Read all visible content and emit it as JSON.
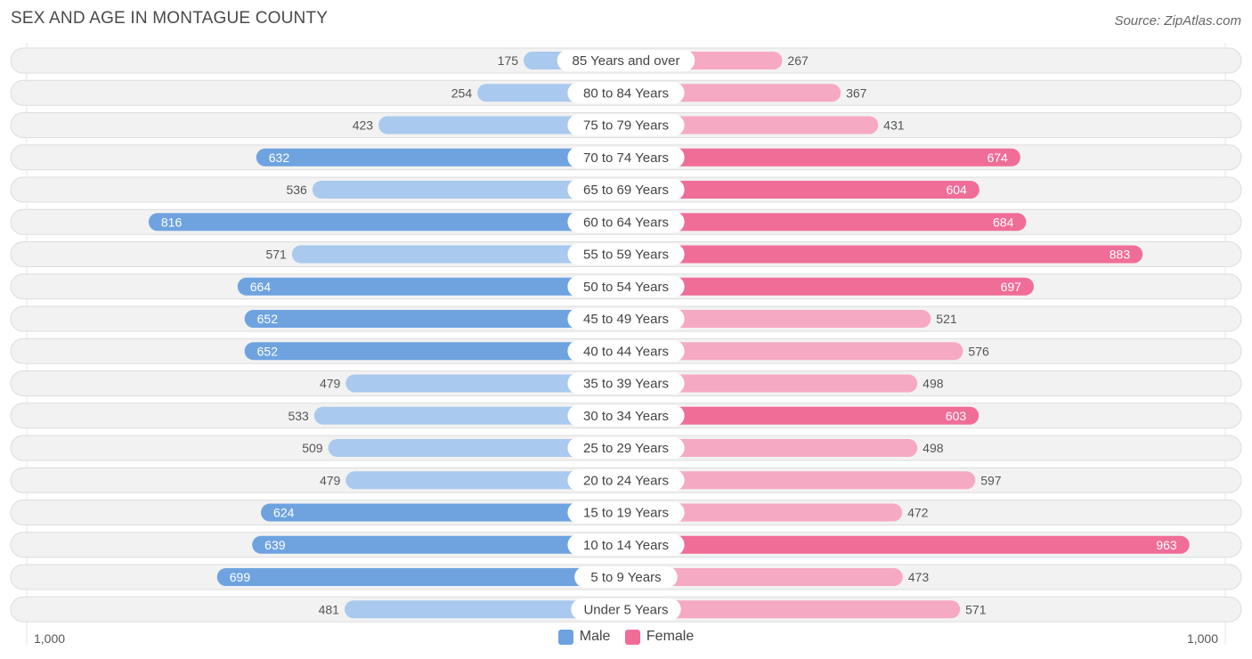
{
  "header": {
    "title": "SEX AND AGE IN MONTAGUE COUNTY",
    "source": "Source: ZipAtlas.com"
  },
  "colors": {
    "male_full": "#6ea3e0",
    "male_light": "#a9c9ee",
    "female_full": "#f06d98",
    "female_light": "#f6a9c3",
    "row_bg": "#f2f2f2",
    "row_border": "#dddddd"
  },
  "chart_data": {
    "type": "bar",
    "orientation": "horizontal-diverging",
    "title": "SEX AND AGE IN MONTAGUE COUNTY",
    "categories": [
      "85 Years and over",
      "80 to 84 Years",
      "75 to 79 Years",
      "70 to 74 Years",
      "65 to 69 Years",
      "60 to 64 Years",
      "55 to 59 Years",
      "50 to 54 Years",
      "45 to 49 Years",
      "40 to 44 Years",
      "35 to 39 Years",
      "30 to 34 Years",
      "25 to 29 Years",
      "20 to 24 Years",
      "15 to 19 Years",
      "10 to 14 Years",
      "5 to 9 Years",
      "Under 5 Years"
    ],
    "series": [
      {
        "name": "Male",
        "values": [
          175,
          254,
          423,
          632,
          536,
          816,
          571,
          664,
          652,
          652,
          479,
          533,
          509,
          479,
          624,
          639,
          699,
          481
        ]
      },
      {
        "name": "Female",
        "values": [
          267,
          367,
          431,
          674,
          604,
          684,
          883,
          697,
          521,
          576,
          498,
          603,
          498,
          597,
          472,
          963,
          473,
          571
        ]
      }
    ],
    "xlim": [
      -1000,
      1000
    ],
    "axis_min_label": "1,000",
    "axis_max_label": "1,000",
    "legend": [
      "Male",
      "Female"
    ]
  }
}
